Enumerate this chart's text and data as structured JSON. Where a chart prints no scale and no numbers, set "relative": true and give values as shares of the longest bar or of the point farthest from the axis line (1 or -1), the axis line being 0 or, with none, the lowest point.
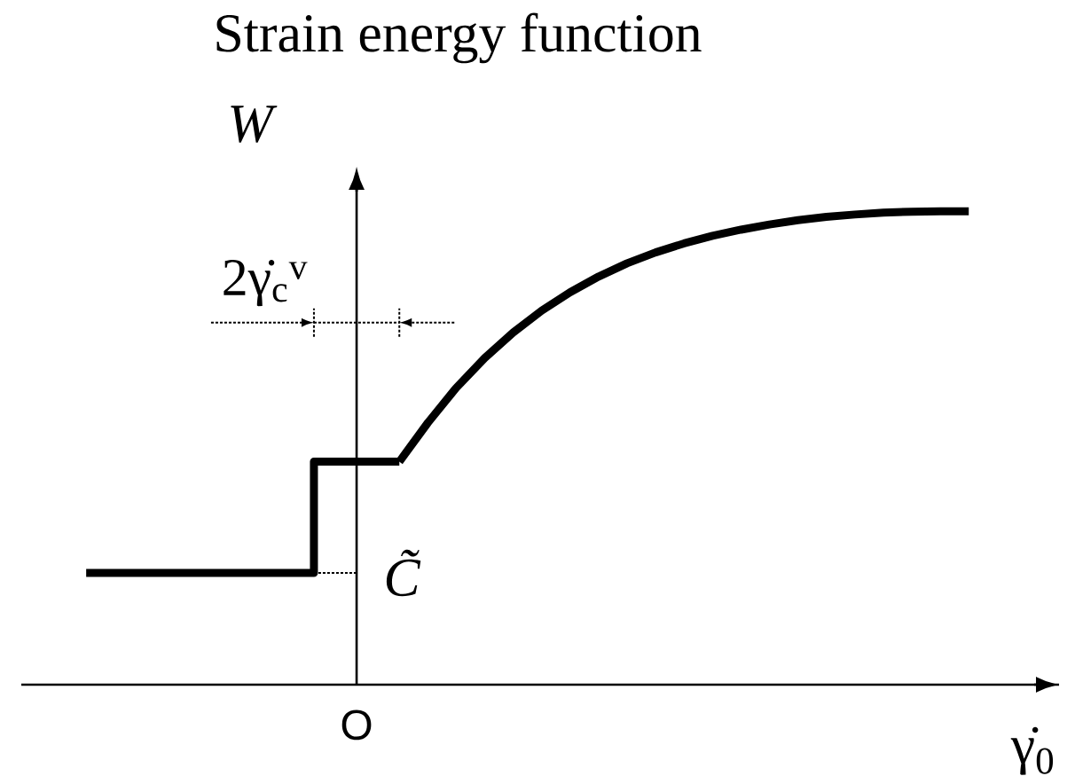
{
  "chart_data": {
    "type": "line",
    "title": "Strain energy function",
    "xlabel": "γ̇$_{0}$",
    "ylabel": "W",
    "relative": true,
    "categories": [
      null,
      null,
      null,
      null,
      null,
      null,
      null,
      null,
      null,
      null,
      null,
      null,
      null,
      null,
      null,
      null,
      null,
      null,
      null,
      null,
      null,
      null,
      null,
      null,
      null,
      null,
      null,
      null,
      null,
      null,
      null,
      null
    ],
    "series": [
      {
        "type": "step",
        "color": "#000000",
        "values": [
          0.236,
          0.236,
          0.236,
          0.236,
          0.236,
          0.236,
          0.236,
          0.236,
          0.471,
          0.471,
          0.471,
          0.471,
          null,
          null,
          null,
          null,
          null,
          null,
          null,
          null,
          null,
          null,
          null,
          null,
          null,
          null,
          null,
          null,
          null,
          null,
          null,
          null
        ]
      },
      {
        "color": "#000000",
        "values": [
          null,
          null,
          null,
          null,
          null,
          null,
          null,
          null,
          null,
          null,
          null,
          0.471,
          0.553,
          0.627,
          0.69,
          0.744,
          0.79,
          0.829,
          0.862,
          0.89,
          0.913,
          0.932,
          0.948,
          0.961,
          0.972,
          0.981,
          0.988,
          0.993,
          0.997,
          0.999,
          1.0,
          1.0
        ]
      }
    ],
    "annotations": [
      "2γ̇$_{c}$$^{v}$",
      "C̃",
      "O"
    ],
    "marker": "none",
    "line_style": "solid"
  }
}
